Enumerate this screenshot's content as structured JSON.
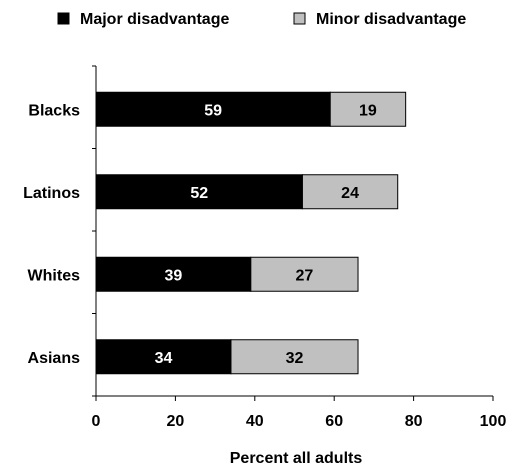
{
  "chart_data": {
    "type": "bar",
    "orientation": "horizontal",
    "stacked": true,
    "categories": [
      "Blacks",
      "Latinos",
      "Whites",
      "Asians"
    ],
    "series": [
      {
        "name": "Major disadvantage",
        "values": [
          59,
          52,
          39,
          34
        ],
        "color": "#000000"
      },
      {
        "name": "Minor disadvantage",
        "values": [
          19,
          24,
          27,
          32
        ],
        "color": "#c0c0c0"
      }
    ],
    "xlabel": "Percent all adults",
    "ylabel": "",
    "xlim": [
      0,
      100
    ],
    "xticks": [
      0,
      20,
      40,
      60,
      80,
      100
    ],
    "grid": false,
    "legend_position": "top",
    "data_labels": true
  }
}
